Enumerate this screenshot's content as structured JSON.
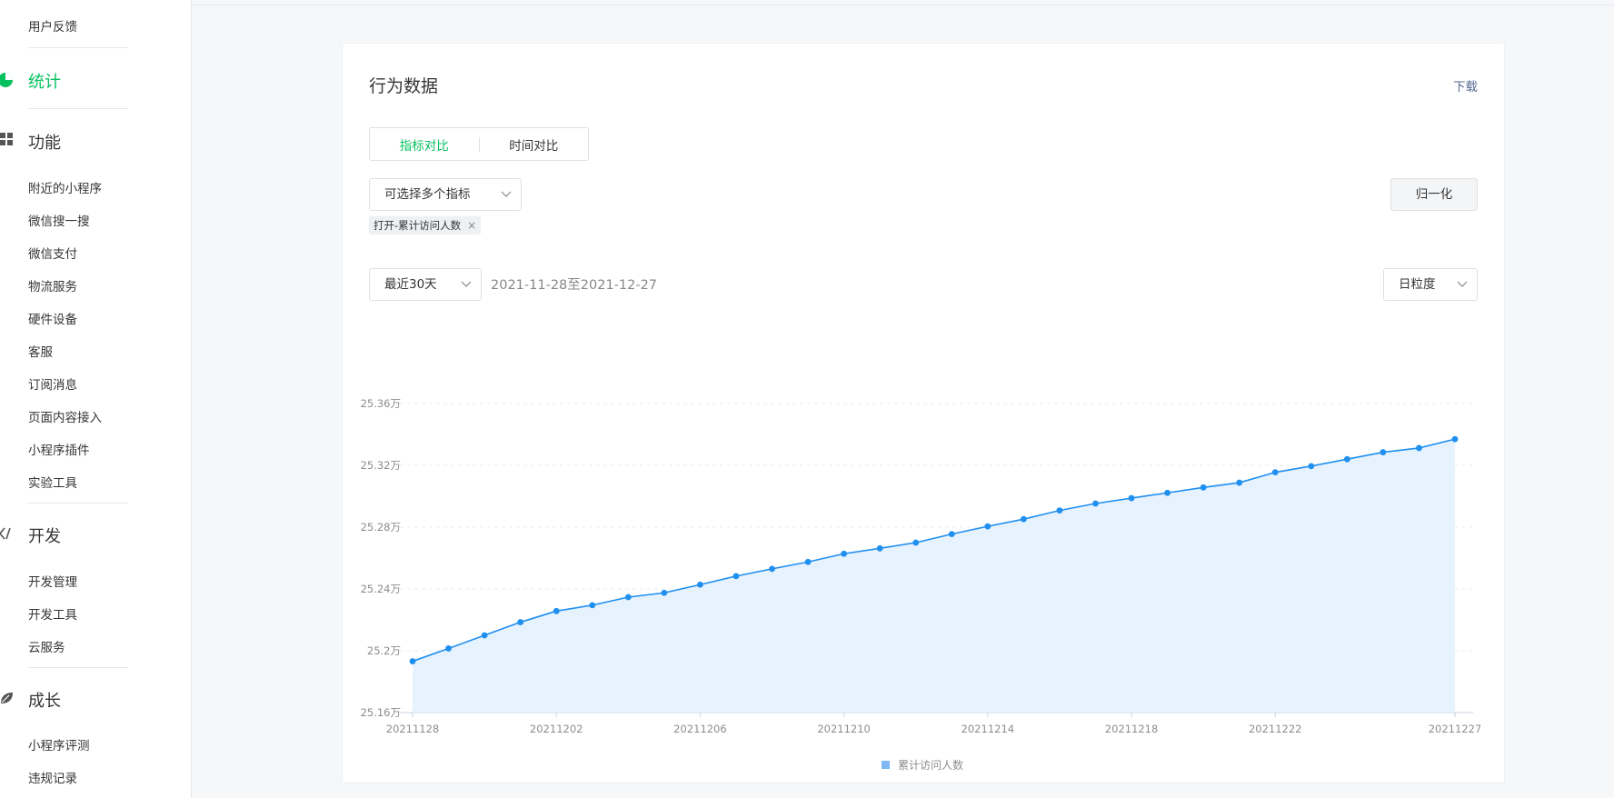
{
  "sidebar": {
    "top_item": "用户反馈",
    "groups": {
      "stats": "统计",
      "features": "功能",
      "dev": "开发",
      "growth": "成长"
    },
    "feature_items": [
      "附近的小程序",
      "微信搜一搜",
      "微信支付",
      "物流服务",
      "硬件设备",
      "客服",
      "订阅消息",
      "页面内容接入",
      "小程序插件",
      "实验工具"
    ],
    "dev_items": [
      "开发管理",
      "开发工具",
      "云服务"
    ],
    "growth_items": [
      "小程序评测",
      "违规记录"
    ],
    "active_color": "#07c160"
  },
  "card": {
    "title": "行为数据",
    "download": "下载",
    "tabs": [
      "指标对比",
      "时间对比"
    ],
    "metric_select": "可选择多个指标",
    "normalize_button": "归一化",
    "tag": "打开-累计访问人数",
    "range_select": "最近30天",
    "date_range": "2021-11-28至2021-12-27",
    "granularity_select": "日粒度"
  },
  "chart_data": {
    "type": "area",
    "title": "",
    "xlabel": "",
    "ylabel": "",
    "x": [
      "20211128",
      "20211129",
      "20211130",
      "20211201",
      "20211202",
      "20211203",
      "20211204",
      "20211205",
      "20211206",
      "20211207",
      "20211208",
      "20211209",
      "20211210",
      "20211211",
      "20211212",
      "20211213",
      "20211214",
      "20211215",
      "20211216",
      "20211217",
      "20211218",
      "20211219",
      "20211220",
      "20211221",
      "20211222",
      "20211223",
      "20211224",
      "20211225",
      "20211226",
      "20211227"
    ],
    "x_tick_labels": [
      "20211128",
      "20211202",
      "20211206",
      "20211210",
      "20211214",
      "20211218",
      "20211222",
      "20211227"
    ],
    "y_tick_labels": [
      "25.16万",
      "25.2万",
      "25.24万",
      "25.28万",
      "25.32万",
      "25.36万"
    ],
    "ylim": [
      251600,
      253600
    ],
    "series": [
      {
        "name": "累计访问人数",
        "color": "#1f8ff0",
        "fill": "#e6f2fd",
        "values": [
          251932,
          252015,
          252100,
          252185,
          252257,
          252295,
          252347,
          252375,
          252428,
          252483,
          252530,
          252575,
          252628,
          252663,
          252700,
          252755,
          252805,
          252852,
          252908,
          252953,
          252988,
          253022,
          253057,
          253088,
          253155,
          253195,
          253240,
          253285,
          253312,
          253370
        ]
      }
    ],
    "grid": true,
    "legend": "bottom-center"
  }
}
